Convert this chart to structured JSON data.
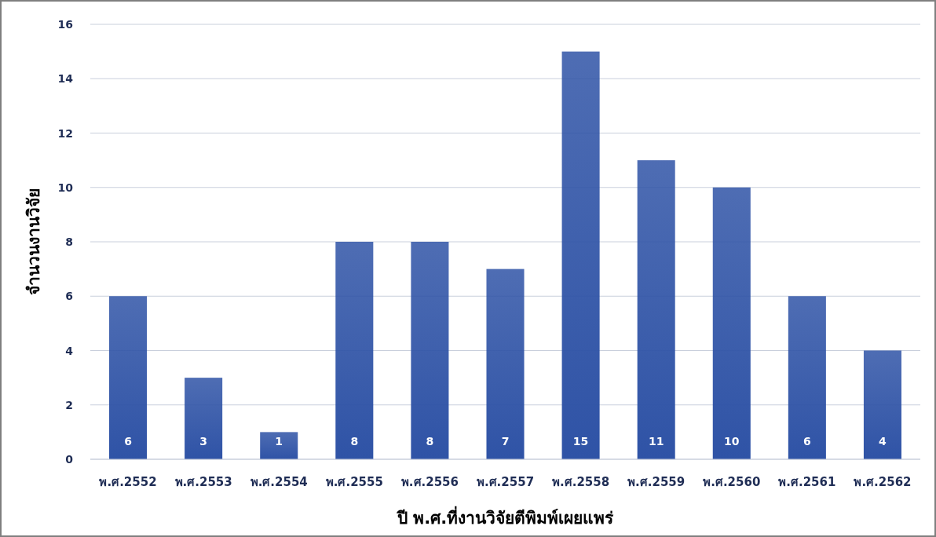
{
  "chart_data": {
    "type": "bar",
    "xlabel": "ปี พ.ศ.ที่งานวิจัยตีพิมพ์เผยแพร่",
    "ylabel": "จำนวนงานวิจัย",
    "categories": [
      "พ.ศ.2552",
      "พ.ศ.2553",
      "พ.ศ.2554",
      "พ.ศ.2555",
      "พ.ศ.2556",
      "พ.ศ.2557",
      "พ.ศ.2558",
      "พ.ศ.2559",
      "พ.ศ.2560",
      "พ.ศ.2561",
      "พ.ศ.2562"
    ],
    "values": [
      6,
      3,
      1,
      8,
      8,
      7,
      15,
      11,
      10,
      6,
      4
    ],
    "color": "#2f53a6",
    "ylim": [
      0,
      16
    ],
    "yticks": [
      0,
      2,
      4,
      6,
      8,
      10,
      12,
      14,
      16
    ],
    "grid": "y",
    "data_labels": true
  }
}
